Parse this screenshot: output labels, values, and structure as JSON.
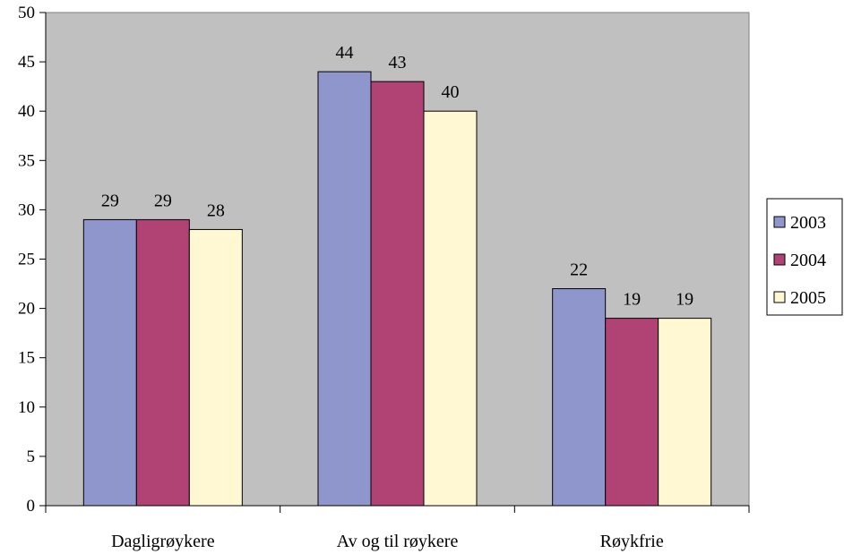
{
  "chart_data": {
    "type": "bar",
    "categories": [
      "Dagligrøykere",
      "Av og til røykere",
      "Røykfrie"
    ],
    "series": [
      {
        "name": "2003",
        "values": [
          29,
          44,
          22
        ],
        "color": "#8f96cc"
      },
      {
        "name": "2004",
        "values": [
          29,
          43,
          19
        ],
        "color": "#b04373"
      },
      {
        "name": "2005",
        "values": [
          28,
          40,
          19
        ],
        "color": "#fff8d2"
      }
    ],
    "title": "",
    "xlabel": "",
    "ylabel": "",
    "ylim": [
      0,
      50
    ],
    "yticks": [
      0,
      5,
      10,
      15,
      20,
      25,
      30,
      35,
      40,
      45,
      50
    ],
    "grid": false,
    "legend_position": "right",
    "plot_background": "#c0c0c0",
    "data_labels": true
  }
}
